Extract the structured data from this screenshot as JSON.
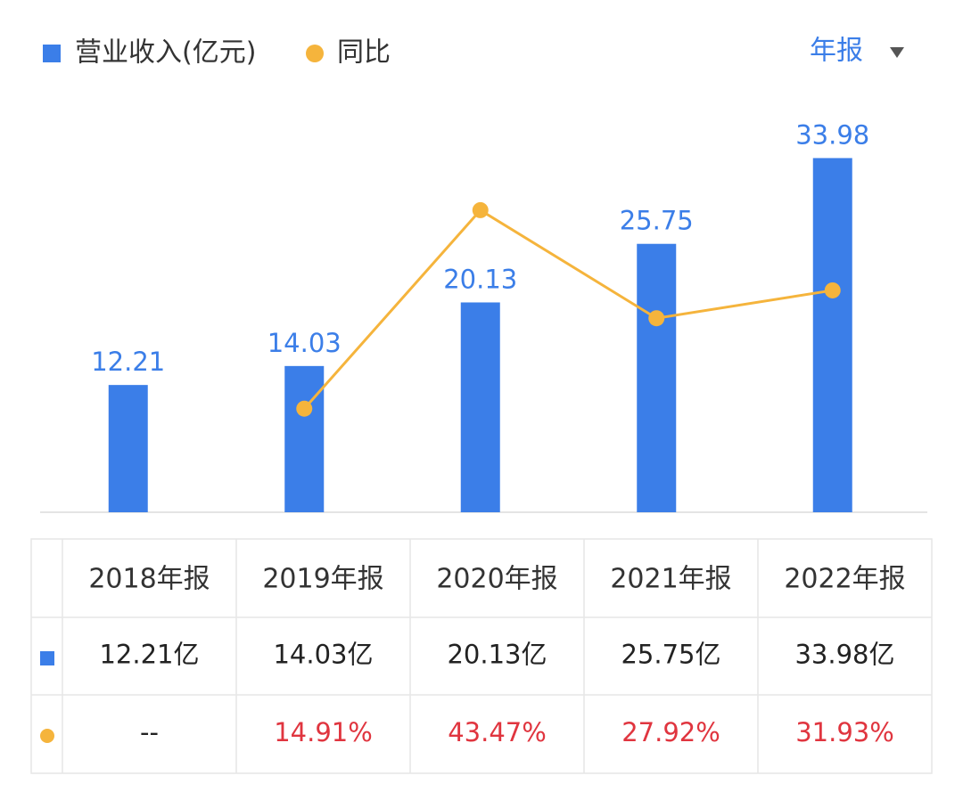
{
  "chart_data": {
    "type": "bar-line",
    "series": [
      {
        "name": "营业收入(亿元)",
        "type": "bar",
        "color": "#3b7ee8",
        "values": [
          12.21,
          14.03,
          20.13,
          25.75,
          33.98
        ]
      },
      {
        "name": "同比",
        "type": "line",
        "axis": "y2",
        "color": "#f5b43c",
        "values": [
          null,
          14.91,
          43.47,
          27.92,
          31.93
        ]
      }
    ],
    "ylim": [
      0,
      40
    ],
    "y2lim": [
      0,
      60
    ]
  },
  "period_selector": "年报",
  "table": {
    "header": [
      "2018年报",
      "2019年报",
      "2020年报",
      "2021年报",
      "2022年报"
    ],
    "rows": [
      [
        "12.21亿",
        "14.03亿",
        "20.13亿",
        "25.75亿",
        "33.98亿"
      ],
      [
        "--",
        "14.91%",
        "43.47%",
        "27.92%",
        "31.93%"
      ]
    ]
  }
}
